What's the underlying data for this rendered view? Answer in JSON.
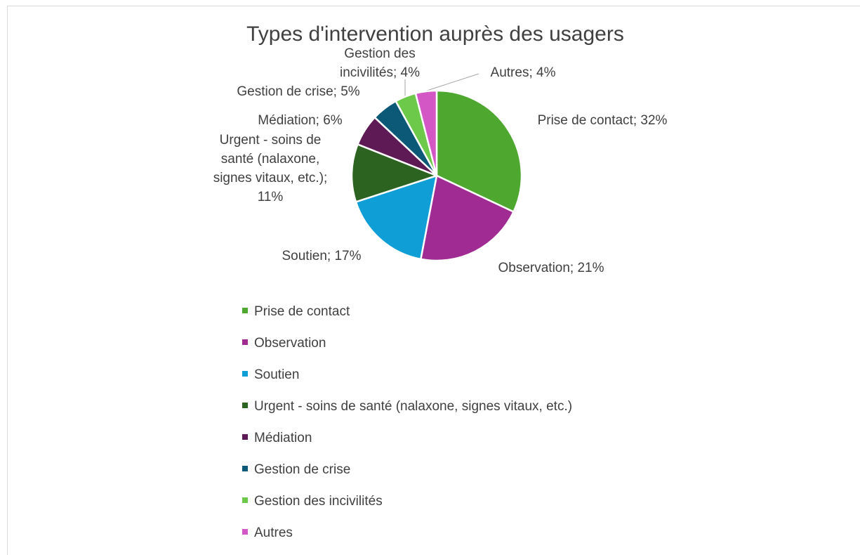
{
  "chart_data": {
    "type": "pie",
    "title": "Types d'intervention auprès des usagers",
    "categories": [
      "Prise de contact",
      "Observation",
      "Soutien",
      "Urgent - soins de santé (nalaxone, signes vitaux, etc.)",
      "Médiation",
      "Gestion de crise",
      "Gestion des incivilités",
      "Autres"
    ],
    "values": [
      32,
      21,
      17,
      11,
      6,
      5,
      4,
      4
    ],
    "value_labels": [
      "Prise de contact; 32%",
      "Observation; 21%",
      "Soutien; 17%",
      "Urgent - soins de santé (nalaxone, signes vitaux, etc.); 11%",
      "Médiation; 6%",
      "Gestion de crise; 5%",
      "Gestion des incivilités; 4%",
      "Autres; 4%"
    ],
    "colors": [
      "#4ea72e",
      "#a02b93",
      "#0f9ed5",
      "#2c6321",
      "#5e1a55",
      "#0b5977",
      "#6cc94a",
      "#d357c5"
    ],
    "legend": "bottom"
  }
}
